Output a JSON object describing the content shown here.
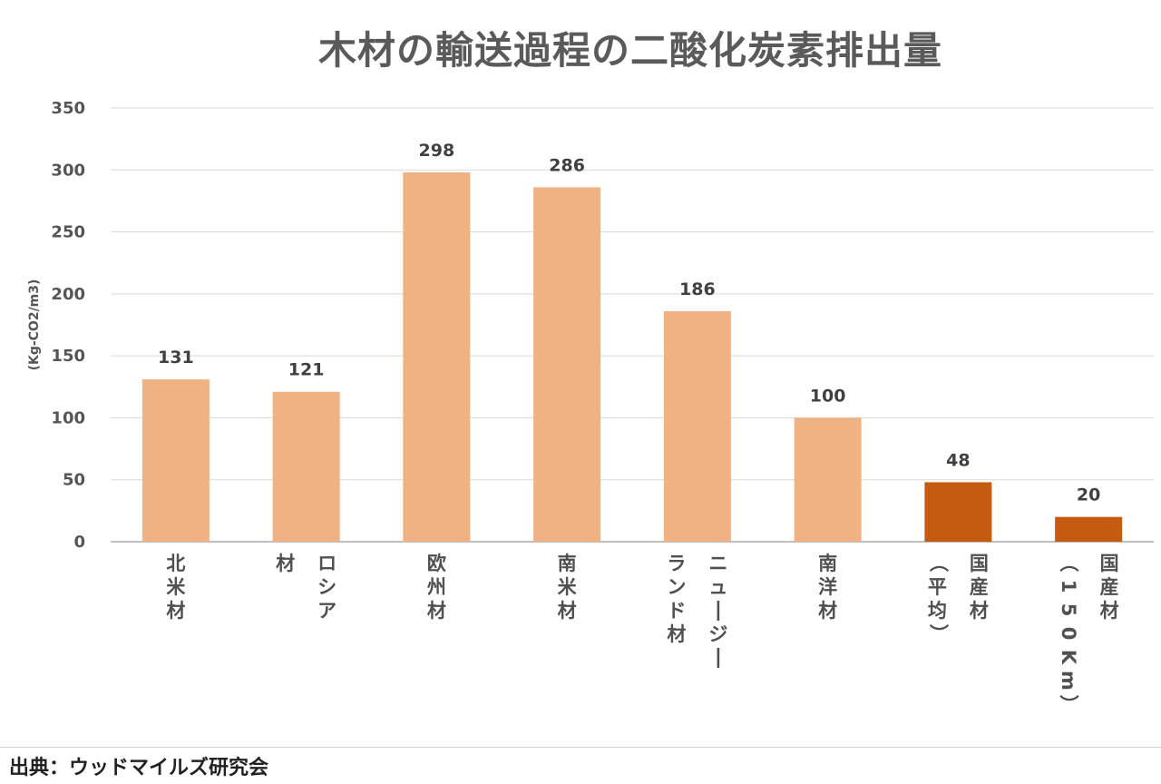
{
  "chart_data": {
    "type": "bar",
    "title": "木材の輸送過程の二酸化炭素排出量",
    "ylabel": "(Kg-CO2/m3)",
    "ylim": [
      0,
      350
    ],
    "yticks": [
      "0",
      "50",
      "100",
      "150",
      "200",
      "250",
      "300",
      "350"
    ],
    "grid": true,
    "categories": [
      "北米材",
      "ロシア材",
      "欧州材",
      "南米材",
      "ニュージーランド材",
      "南洋材",
      "国産材（平均）",
      "国産材（150Km）"
    ],
    "category_columns": [
      [
        "北米材"
      ],
      [
        "ロシア",
        "材"
      ],
      [
        "欧州材"
      ],
      [
        "南米材"
      ],
      [
        "ニュージー",
        "ランド材"
      ],
      [
        "南洋材"
      ],
      [
        "国産材",
        "（平均）"
      ],
      [
        "国産材",
        "（150Km）"
      ]
    ],
    "values": [
      131,
      121,
      298,
      286,
      186,
      100,
      48,
      20
    ],
    "data_labels": [
      "131",
      "121",
      "298",
      "286",
      "186",
      "100",
      "48",
      "20"
    ],
    "colors": [
      "#f0b183",
      "#f0b183",
      "#f0b183",
      "#f0b183",
      "#f0b183",
      "#f0b183",
      "#c55a11",
      "#c55a11"
    ]
  },
  "source": "出典：ウッドマイルズ研究会"
}
